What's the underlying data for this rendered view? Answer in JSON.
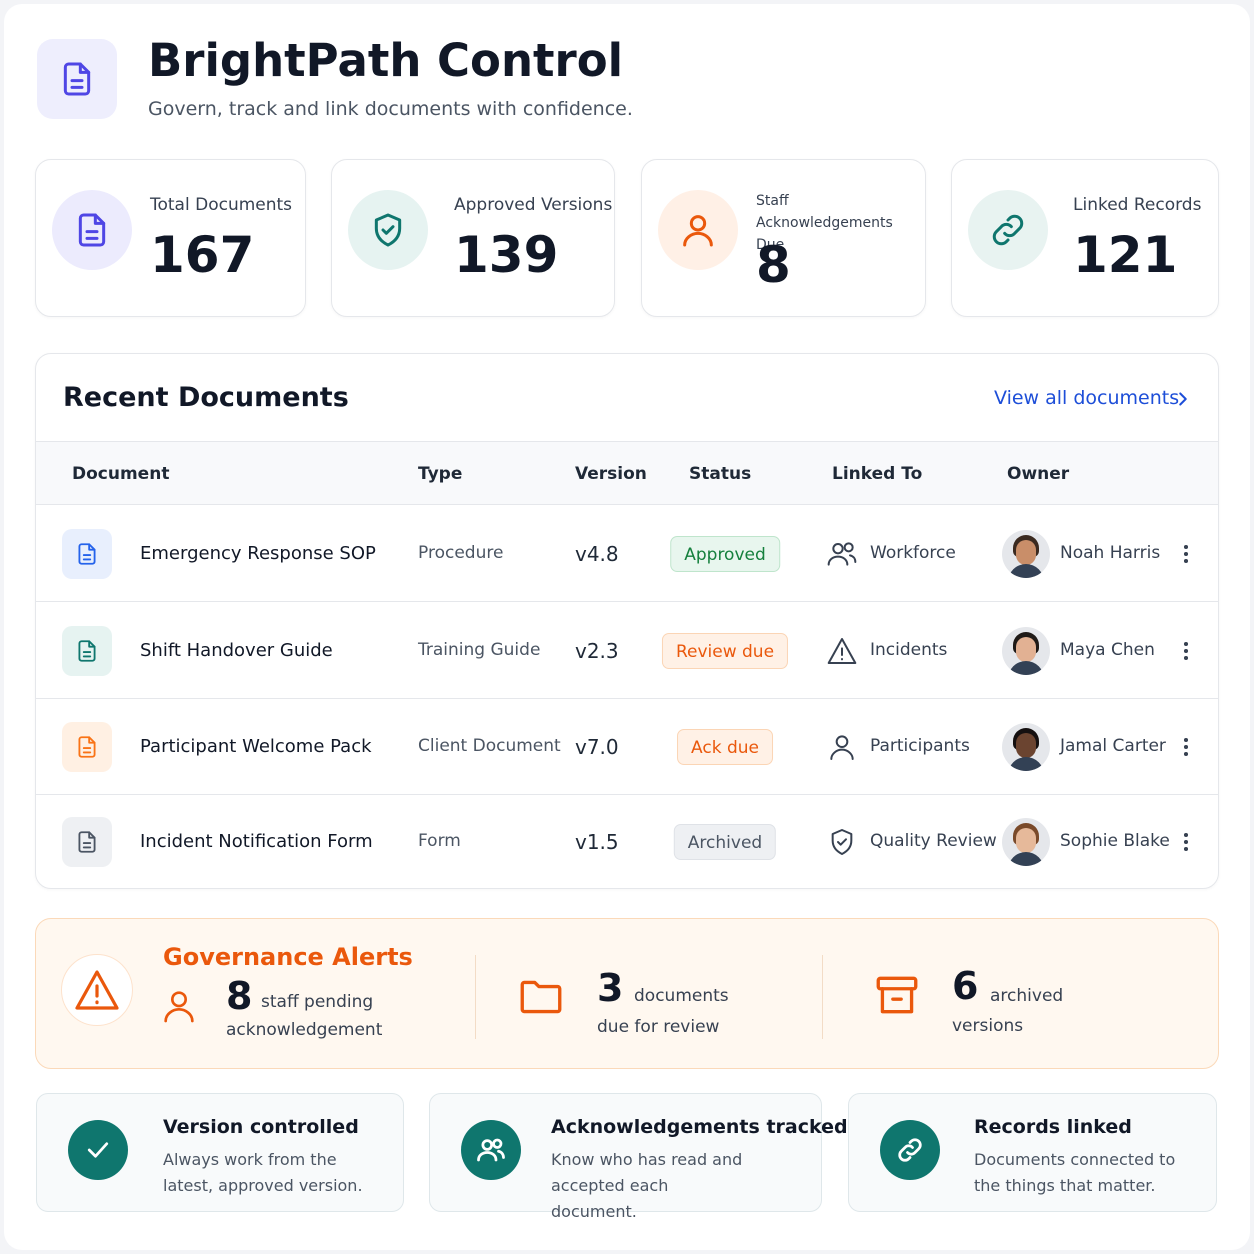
{
  "header": {
    "title": "BrightPath Control",
    "subtitle": "Govern, track and link documents with confidence."
  },
  "stats": [
    {
      "label": "Total Documents",
      "value": 167
    },
    {
      "label": "Approved Versions",
      "value": 139
    },
    {
      "label": "Staff Acknowledgements Due",
      "value": 8
    },
    {
      "label": "Linked Records",
      "value": 121
    }
  ],
  "recent": {
    "title": "Recent Documents",
    "link": "View all documents",
    "columns": [
      "Document",
      "Type",
      "Version",
      "Status",
      "Linked To",
      "Owner"
    ],
    "rows": [
      {
        "document": "Emergency Response SOP",
        "type": "Procedure",
        "version": "v4.8",
        "status": "Approved",
        "linked_to": "Workforce",
        "owner": "Noah Harris"
      },
      {
        "document": "Shift Handover Guide",
        "type": "Training Guide",
        "version": "v2.3",
        "status": "Review due",
        "linked_to": "Incidents",
        "owner": "Maya Chen"
      },
      {
        "document": "Participant Welcome Pack",
        "type": "Client Document",
        "version": "v7.0",
        "status": "Ack due",
        "linked_to": "Participants",
        "owner": "Jamal Carter"
      },
      {
        "document": "Incident Notification Form",
        "type": "Form",
        "version": "v1.5",
        "status": "Archived",
        "linked_to": "Quality Review",
        "owner": "Sophie Blake"
      }
    ]
  },
  "alerts": {
    "title": "Governance Alerts",
    "items": [
      {
        "value": 8,
        "unit": "staff pending",
        "text": "acknowledgement"
      },
      {
        "value": 3,
        "unit": "documents",
        "text": "due for review"
      },
      {
        "value": 6,
        "unit": "archived",
        "text": "versions"
      }
    ]
  },
  "features": [
    {
      "title": "Version controlled",
      "text": "Always work from the latest, approved version."
    },
    {
      "title": "Acknowledgements tracked",
      "text": "Know who has read and accepted each document."
    },
    {
      "title": "Records linked",
      "text": "Documents connected to the things that matter."
    }
  ]
}
